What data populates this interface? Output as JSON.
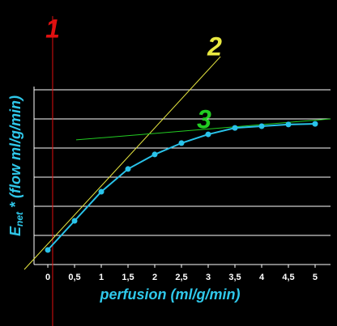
{
  "chart_data": {
    "type": "line",
    "x_label": "perfusion (ml/g/min)",
    "y_label": {
      "main": "E",
      "sub": "net",
      "rest": " * (flow ml/g/min)"
    },
    "xlim": [
      -0.258,
      5.288
    ],
    "xticks": [
      0,
      {
        "value": 0.5,
        "label": "0,5"
      },
      1,
      {
        "value": 1.5,
        "label": "1,5"
      },
      2,
      {
        "value": 2.5,
        "label": "2,5"
      },
      3,
      {
        "value": 3.5,
        "label": "3,5"
      },
      4,
      {
        "value": 4.5,
        "label": "4,5"
      },
      5
    ],
    "ylim": [
      0,
      6
    ],
    "yticks": [
      1,
      2,
      3,
      4,
      5,
      6
    ],
    "grid": true,
    "series": [
      {
        "color": "#29c3ea",
        "x": [
          0,
          0.5,
          1,
          1.5,
          2,
          2.5,
          3,
          3.5,
          4,
          4.5,
          5
        ],
        "values": [
          0.5,
          1.5,
          2.5,
          3.28,
          3.78,
          4.17,
          4.47,
          4.69,
          4.75,
          4.81,
          4.83
        ]
      }
    ],
    "annotations": [
      {
        "label": "1",
        "color": "#e01010",
        "x": [
          0.09,
          0.09
        ],
        "values": [
          8.53,
          -2.11
        ]
      },
      {
        "label": "2",
        "color": "#e8e840",
        "x": [
          -0.44,
          3.23
        ],
        "values": [
          -0.17,
          7.14
        ]
      },
      {
        "label": "3",
        "color": "#22cc22",
        "x": [
          0.53,
          5.29
        ],
        "values": [
          4.28,
          5.0
        ]
      }
    ]
  }
}
